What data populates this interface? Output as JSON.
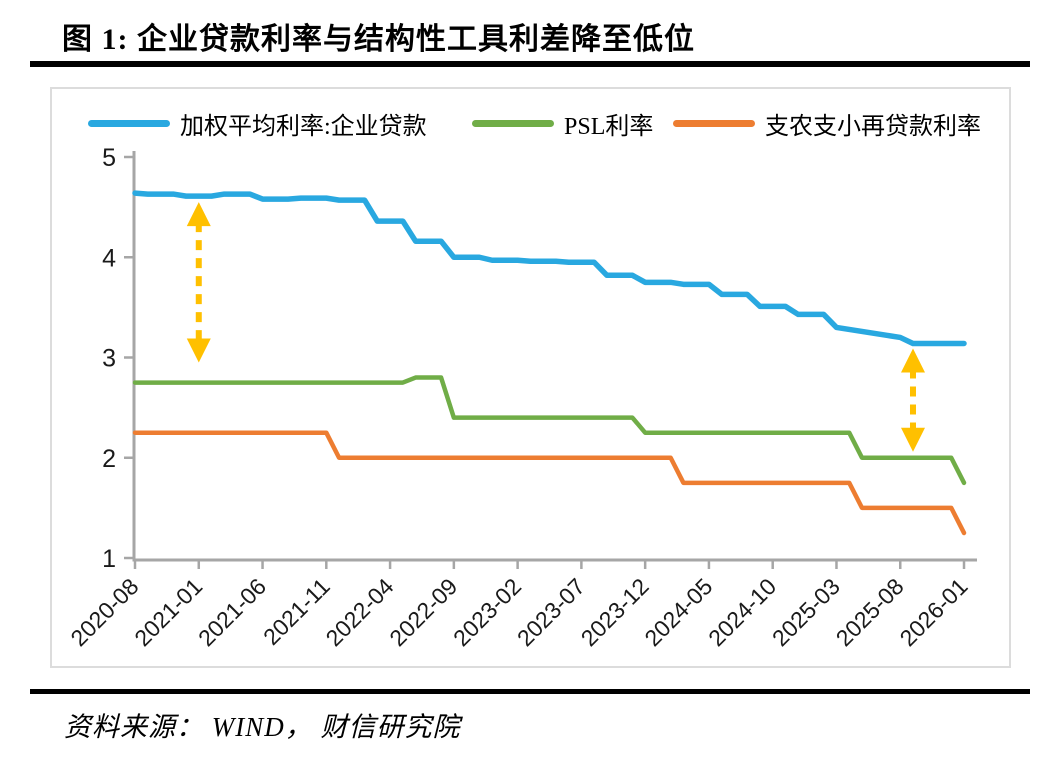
{
  "title": "图 1:  企业贷款利率与结构性工具利差降至低位",
  "source": "资料来源： WIND， 财信研究院",
  "colors": {
    "accent_blue": "#29A8E0",
    "accent_green": "#70AD47",
    "accent_orange": "#ED7D31",
    "arrow_gold": "#FFC000",
    "axis_gray": "#A6A6A6",
    "panel_border": "#DCDCDC"
  },
  "chart_data": {
    "type": "line",
    "title": "企业贷款利率与结构性工具利差降至低位",
    "xlabel": "",
    "ylabel": "",
    "ylim": [
      1,
      5
    ],
    "y_ticks": [
      5,
      4,
      3,
      2,
      1
    ],
    "grid": false,
    "legend_position": "top",
    "x_tick_every": 5,
    "x": [
      "2020-08",
      "2020-09",
      "2020-10",
      "2020-11",
      "2020-12",
      "2021-01",
      "2021-02",
      "2021-03",
      "2021-04",
      "2021-05",
      "2021-06",
      "2021-07",
      "2021-08",
      "2021-09",
      "2021-10",
      "2021-11",
      "2021-12",
      "2022-01",
      "2022-02",
      "2022-03",
      "2022-04",
      "2022-05",
      "2022-06",
      "2022-07",
      "2022-08",
      "2022-09",
      "2022-10",
      "2022-11",
      "2022-12",
      "2023-01",
      "2023-02",
      "2023-03",
      "2023-04",
      "2023-05",
      "2023-06",
      "2023-07",
      "2023-08",
      "2023-09",
      "2023-10",
      "2023-11",
      "2023-12",
      "2024-01",
      "2024-02",
      "2024-03",
      "2024-04",
      "2024-05",
      "2024-06",
      "2024-07",
      "2024-08",
      "2024-09",
      "2024-10",
      "2024-11",
      "2024-12",
      "2025-01",
      "2025-02",
      "2025-03",
      "2025-04",
      "2025-05",
      "2025-06",
      "2025-07",
      "2025-08",
      "2025-09",
      "2025-10",
      "2025-11",
      "2025-12",
      "2026-01"
    ],
    "x_tick_labels": [
      "2020-08",
      "2021-01",
      "2021-06",
      "2021-11",
      "2022-04",
      "2022-09",
      "2023-02",
      "2023-07",
      "2023-12",
      "2024-05",
      "2024-10",
      "2025-03",
      "2025-08",
      "2026-01"
    ],
    "series": [
      {
        "name": "加权平均利率:企业贷款",
        "color": "#29A8E0",
        "width": 5.5,
        "values": [
          4.64,
          4.63,
          4.63,
          4.63,
          4.61,
          4.61,
          4.61,
          4.63,
          4.63,
          4.63,
          4.58,
          4.58,
          4.58,
          4.59,
          4.59,
          4.59,
          4.57,
          4.57,
          4.57,
          4.36,
          4.36,
          4.36,
          4.16,
          4.16,
          4.16,
          4.0,
          4.0,
          4.0,
          3.97,
          3.97,
          3.97,
          3.96,
          3.96,
          3.96,
          3.95,
          3.95,
          3.95,
          3.82,
          3.82,
          3.82,
          3.75,
          3.75,
          3.75,
          3.73,
          3.73,
          3.73,
          3.63,
          3.63,
          3.63,
          3.51,
          3.51,
          3.51,
          3.43,
          3.43,
          3.43,
          3.3,
          3.28,
          3.26,
          3.24,
          3.22,
          3.2,
          3.14,
          3.14,
          3.14,
          3.14,
          3.14
        ]
      },
      {
        "name": "PSL利率",
        "color": "#70AD47",
        "width": 4.5,
        "values": [
          2.75,
          2.75,
          2.75,
          2.75,
          2.75,
          2.75,
          2.75,
          2.75,
          2.75,
          2.75,
          2.75,
          2.75,
          2.75,
          2.75,
          2.75,
          2.75,
          2.75,
          2.75,
          2.75,
          2.75,
          2.75,
          2.75,
          2.8,
          2.8,
          2.8,
          2.4,
          2.4,
          2.4,
          2.4,
          2.4,
          2.4,
          2.4,
          2.4,
          2.4,
          2.4,
          2.4,
          2.4,
          2.4,
          2.4,
          2.4,
          2.25,
          2.25,
          2.25,
          2.25,
          2.25,
          2.25,
          2.25,
          2.25,
          2.25,
          2.25,
          2.25,
          2.25,
          2.25,
          2.25,
          2.25,
          2.25,
          2.25,
          2.0,
          2.0,
          2.0,
          2.0,
          2.0,
          2.0,
          2.0,
          2.0,
          1.75
        ]
      },
      {
        "name": "支农支小再贷款利率",
        "color": "#ED7D31",
        "width": 4.5,
        "values": [
          2.25,
          2.25,
          2.25,
          2.25,
          2.25,
          2.25,
          2.25,
          2.25,
          2.25,
          2.25,
          2.25,
          2.25,
          2.25,
          2.25,
          2.25,
          2.25,
          2.0,
          2.0,
          2.0,
          2.0,
          2.0,
          2.0,
          2.0,
          2.0,
          2.0,
          2.0,
          2.0,
          2.0,
          2.0,
          2.0,
          2.0,
          2.0,
          2.0,
          2.0,
          2.0,
          2.0,
          2.0,
          2.0,
          2.0,
          2.0,
          2.0,
          2.0,
          2.0,
          1.75,
          1.75,
          1.75,
          1.75,
          1.75,
          1.75,
          1.75,
          1.75,
          1.75,
          1.75,
          1.75,
          1.75,
          1.75,
          1.75,
          1.5,
          1.5,
          1.5,
          1.5,
          1.5,
          1.5,
          1.5,
          1.5,
          1.25
        ]
      }
    ],
    "annotations": [
      {
        "type": "double-arrow",
        "x": "2021-01",
        "v_top": 4.55,
        "v_bottom": 2.95,
        "color": "#FFC000"
      },
      {
        "type": "double-arrow",
        "x": "2025-09",
        "v_top": 3.09,
        "v_bottom": 2.06,
        "color": "#FFC000"
      }
    ]
  }
}
